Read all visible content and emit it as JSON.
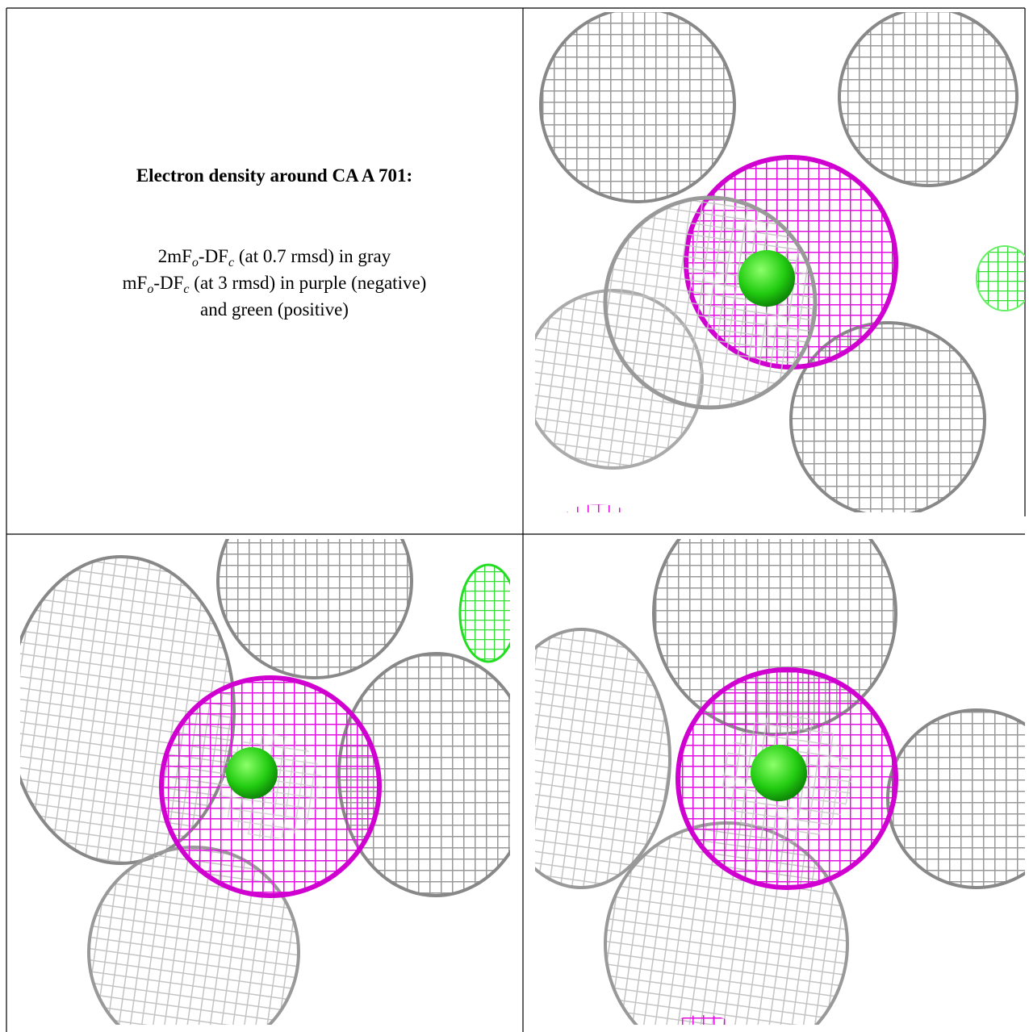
{
  "caption": {
    "title": "Electron density around CA A 701:",
    "lines": [
      [
        {
          "text": "2mF"
        },
        {
          "sub": "o"
        },
        {
          "text": "-DF"
        },
        {
          "sub": "c"
        },
        {
          "text": " (at 0.7 rmsd) in gray"
        }
      ],
      [
        {
          "text": "mF"
        },
        {
          "sub": "o"
        },
        {
          "text": "-DF"
        },
        {
          "sub": "c"
        },
        {
          "text": " (at 3 rmsd) in purple (negative)"
        }
      ],
      [
        {
          "text": "and green (positive)"
        }
      ]
    ]
  }
}
